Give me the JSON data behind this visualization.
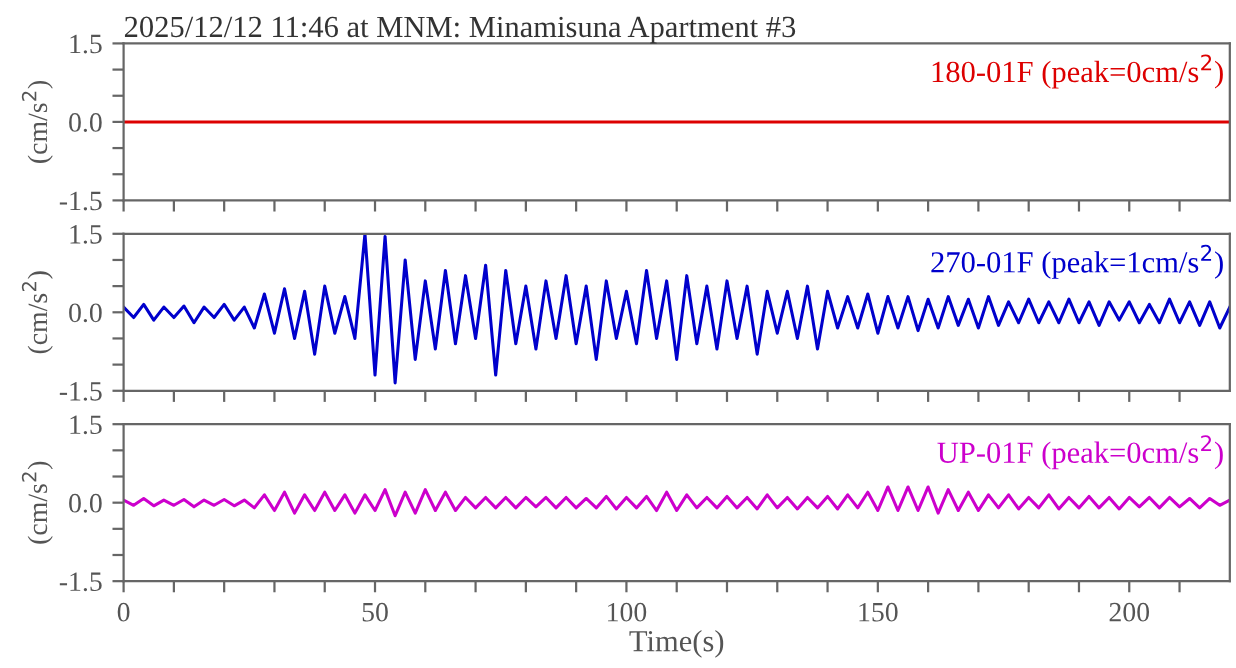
{
  "chart_data": [
    {
      "type": "line",
      "title": "2025/12/12 11:46 at MNM: Minamisuna Apartment #3",
      "ylabel": "(cm/s$^{2}$)",
      "series": [
        {
          "name": "180-01F (peak=0cm/s$^{2}$)",
          "color": "#dd0000",
          "x": [
            0,
            220
          ],
          "values": [
            0,
            0
          ]
        }
      ],
      "xlim": [
        0,
        220
      ],
      "ylim": [
        -1.5,
        1.5
      ],
      "xticks": [
        0,
        {
          "value": 10,
          "label": null
        },
        {
          "value": 20,
          "label": null
        },
        {
          "value": 30,
          "label": null
        },
        {
          "value": 40,
          "label": null
        },
        50,
        {
          "value": 60,
          "label": null
        },
        {
          "value": 70,
          "label": null
        },
        {
          "value": 80,
          "label": null
        },
        {
          "value": 90,
          "label": null
        },
        100,
        {
          "value": 110,
          "label": null
        },
        {
          "value": 120,
          "label": null
        },
        {
          "value": 130,
          "label": null
        },
        {
          "value": 140,
          "label": null
        },
        150,
        {
          "value": 160,
          "label": null
        },
        {
          "value": 170,
          "label": null
        },
        {
          "value": 180,
          "label": null
        },
        {
          "value": 190,
          "label": null
        },
        200,
        {
          "value": 210,
          "label": null
        }
      ],
      "yticks": [
        {
          "value": -1.5,
          "label": "-1.5"
        },
        {
          "value": -1.0,
          "label": null
        },
        {
          "value": -0.5,
          "label": null
        },
        {
          "value": 0,
          "label": "0.0"
        },
        {
          "value": 0.5,
          "label": null
        },
        {
          "value": 1.0,
          "label": null
        },
        {
          "value": 1.5,
          "label": "1.5"
        }
      ],
      "tick_labels": "y",
      "grid": false,
      "legend": false,
      "line_style": "solid",
      "marker": "none"
    },
    {
      "type": "line",
      "ylabel": "(cm/s$^{2}$)",
      "x": [
        0,
        2,
        4,
        6,
        8,
        10,
        12,
        14,
        16,
        18,
        20,
        22,
        24,
        26,
        28,
        30,
        32,
        34,
        36,
        38,
        40,
        42,
        44,
        46,
        48,
        50,
        52,
        54,
        56,
        58,
        60,
        62,
        64,
        66,
        68,
        70,
        72,
        74,
        76,
        78,
        80,
        82,
        84,
        86,
        88,
        90,
        92,
        94,
        96,
        98,
        100,
        102,
        104,
        106,
        108,
        110,
        112,
        114,
        116,
        118,
        120,
        122,
        124,
        126,
        128,
        130,
        132,
        134,
        136,
        138,
        140,
        142,
        144,
        146,
        148,
        150,
        152,
        154,
        156,
        158,
        160,
        162,
        164,
        166,
        168,
        170,
        172,
        174,
        176,
        178,
        180,
        182,
        184,
        186,
        188,
        190,
        192,
        194,
        196,
        198,
        200,
        202,
        204,
        206,
        208,
        210,
        212,
        214,
        216,
        218,
        220
      ],
      "series": [
        {
          "name": "270-01F (peak=1cm/s$^{2}$)",
          "color": "#0000cc",
          "values": [
            0.1,
            -0.1,
            0.15,
            -0.15,
            0.1,
            -0.1,
            0.12,
            -0.2,
            0.1,
            -0.1,
            0.15,
            -0.15,
            0.1,
            -0.3,
            0.35,
            -0.4,
            0.45,
            -0.5,
            0.4,
            -0.8,
            0.5,
            -0.4,
            0.3,
            -0.5,
            1.5,
            -1.2,
            1.45,
            -1.35,
            1.0,
            -0.9,
            0.6,
            -0.7,
            0.8,
            -0.6,
            0.7,
            -0.5,
            0.9,
            -1.2,
            0.8,
            -0.6,
            0.5,
            -0.7,
            0.6,
            -0.5,
            0.7,
            -0.6,
            0.5,
            -0.9,
            0.6,
            -0.5,
            0.4,
            -0.6,
            0.8,
            -0.5,
            0.6,
            -0.9,
            0.7,
            -0.6,
            0.5,
            -0.7,
            0.6,
            -0.5,
            0.5,
            -0.8,
            0.4,
            -0.4,
            0.4,
            -0.5,
            0.5,
            -0.7,
            0.4,
            -0.3,
            0.3,
            -0.3,
            0.35,
            -0.4,
            0.3,
            -0.3,
            0.3,
            -0.35,
            0.25,
            -0.3,
            0.3,
            -0.25,
            0.25,
            -0.3,
            0.3,
            -0.25,
            0.2,
            -0.2,
            0.25,
            -0.2,
            0.2,
            -0.2,
            0.25,
            -0.2,
            0.2,
            -0.25,
            0.2,
            -0.15,
            0.2,
            -0.2,
            0.15,
            -0.2,
            0.25,
            -0.2,
            0.2,
            -0.25,
            0.2,
            -0.3,
            0.1
          ]
        }
      ],
      "xlim": [
        0,
        220
      ],
      "ylim": [
        -1.5,
        1.5
      ],
      "xticks": [
        0,
        {
          "value": 10,
          "label": null
        },
        {
          "value": 20,
          "label": null
        },
        {
          "value": 30,
          "label": null
        },
        {
          "value": 40,
          "label": null
        },
        50,
        {
          "value": 60,
          "label": null
        },
        {
          "value": 70,
          "label": null
        },
        {
          "value": 80,
          "label": null
        },
        {
          "value": 90,
          "label": null
        },
        100,
        {
          "value": 110,
          "label": null
        },
        {
          "value": 120,
          "label": null
        },
        {
          "value": 130,
          "label": null
        },
        {
          "value": 140,
          "label": null
        },
        150,
        {
          "value": 160,
          "label": null
        },
        {
          "value": 170,
          "label": null
        },
        {
          "value": 180,
          "label": null
        },
        {
          "value": 190,
          "label": null
        },
        200,
        {
          "value": 210,
          "label": null
        }
      ],
      "yticks": [
        {
          "value": -1.5,
          "label": "-1.5"
        },
        {
          "value": -1.0,
          "label": null
        },
        {
          "value": -0.5,
          "label": null
        },
        {
          "value": 0,
          "label": "0.0"
        },
        {
          "value": 0.5,
          "label": null
        },
        {
          "value": 1.0,
          "label": null
        },
        {
          "value": 1.5,
          "label": "1.5"
        }
      ],
      "tick_labels": "y",
      "grid": false,
      "legend": false,
      "line_style": "solid",
      "marker": "none"
    },
    {
      "type": "line",
      "ylabel": "(cm/s$^{2}$)",
      "xlabel": "Time(s)",
      "x": [
        0,
        2,
        4,
        6,
        8,
        10,
        12,
        14,
        16,
        18,
        20,
        22,
        24,
        26,
        28,
        30,
        32,
        34,
        36,
        38,
        40,
        42,
        44,
        46,
        48,
        50,
        52,
        54,
        56,
        58,
        60,
        62,
        64,
        66,
        68,
        70,
        72,
        74,
        76,
        78,
        80,
        82,
        84,
        86,
        88,
        90,
        92,
        94,
        96,
        98,
        100,
        102,
        104,
        106,
        108,
        110,
        112,
        114,
        116,
        118,
        120,
        122,
        124,
        126,
        128,
        130,
        132,
        134,
        136,
        138,
        140,
        142,
        144,
        146,
        148,
        150,
        152,
        154,
        156,
        158,
        160,
        162,
        164,
        166,
        168,
        170,
        172,
        174,
        176,
        178,
        180,
        182,
        184,
        186,
        188,
        190,
        192,
        194,
        196,
        198,
        200,
        202,
        204,
        206,
        208,
        210,
        212,
        214,
        216,
        218,
        220
      ],
      "series": [
        {
          "name": "UP-01F (peak=0cm/s$^{2}$)",
          "color": "#cc00cc",
          "values": [
            0.05,
            -0.05,
            0.08,
            -0.06,
            0.05,
            -0.05,
            0.06,
            -0.08,
            0.05,
            -0.05,
            0.06,
            -0.06,
            0.05,
            -0.1,
            0.15,
            -0.15,
            0.2,
            -0.2,
            0.15,
            -0.15,
            0.2,
            -0.15,
            0.15,
            -0.2,
            0.15,
            -0.15,
            0.25,
            -0.25,
            0.2,
            -0.2,
            0.25,
            -0.15,
            0.2,
            -0.15,
            0.1,
            -0.1,
            0.1,
            -0.1,
            0.1,
            -0.1,
            0.1,
            -0.08,
            0.1,
            -0.1,
            0.1,
            -0.1,
            0.08,
            -0.1,
            0.12,
            -0.12,
            0.1,
            -0.1,
            0.12,
            -0.15,
            0.2,
            -0.15,
            0.15,
            -0.1,
            0.1,
            -0.1,
            0.12,
            -0.1,
            0.1,
            -0.12,
            0.15,
            -0.1,
            0.1,
            -0.12,
            0.1,
            -0.1,
            0.12,
            -0.12,
            0.15,
            -0.1,
            0.2,
            -0.15,
            0.3,
            -0.15,
            0.3,
            -0.15,
            0.3,
            -0.2,
            0.25,
            -0.15,
            0.2,
            -0.15,
            0.15,
            -0.1,
            0.15,
            -0.12,
            0.1,
            -0.1,
            0.15,
            -0.12,
            0.1,
            -0.1,
            0.12,
            -0.1,
            0.1,
            -0.12,
            0.1,
            -0.08,
            0.1,
            -0.1,
            0.1,
            -0.08,
            0.08,
            -0.1,
            0.08,
            -0.05,
            0.05
          ]
        }
      ],
      "xlim": [
        0,
        220
      ],
      "ylim": [
        -1.5,
        1.5
      ],
      "xticks": [
        0,
        {
          "value": 10,
          "label": null
        },
        {
          "value": 20,
          "label": null
        },
        {
          "value": 30,
          "label": null
        },
        {
          "value": 40,
          "label": null
        },
        50,
        {
          "value": 60,
          "label": null
        },
        {
          "value": 70,
          "label": null
        },
        {
          "value": 80,
          "label": null
        },
        {
          "value": 90,
          "label": null
        },
        100,
        {
          "value": 110,
          "label": null
        },
        {
          "value": 120,
          "label": null
        },
        {
          "value": 130,
          "label": null
        },
        {
          "value": 140,
          "label": null
        },
        150,
        {
          "value": 160,
          "label": null
        },
        {
          "value": 170,
          "label": null
        },
        {
          "value": 180,
          "label": null
        },
        {
          "value": 190,
          "label": null
        },
        200,
        {
          "value": 210,
          "label": null
        }
      ],
      "yticks": [
        {
          "value": -1.5,
          "label": "-1.5"
        },
        {
          "value": -1.0,
          "label": null
        },
        {
          "value": -0.5,
          "label": null
        },
        {
          "value": 0,
          "label": "0.0"
        },
        {
          "value": 0.5,
          "label": null
        },
        {
          "value": 1.0,
          "label": null
        },
        {
          "value": 1.5,
          "label": "1.5"
        }
      ],
      "grid": false,
      "legend": false,
      "line_style": "solid",
      "marker": "none"
    }
  ]
}
